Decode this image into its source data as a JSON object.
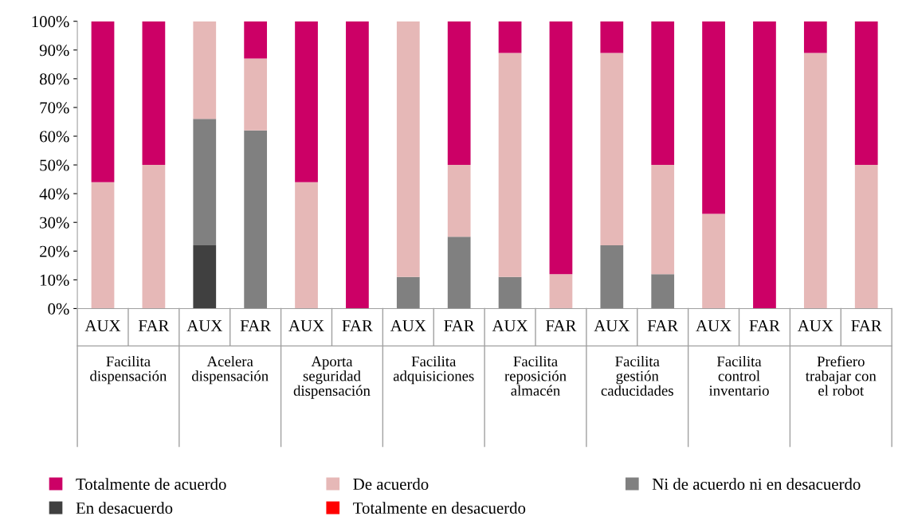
{
  "chart_data": {
    "type": "bar",
    "stacked": true,
    "categories": [
      "AUX",
      "FAR",
      "AUX",
      "FAR",
      "AUX",
      "FAR",
      "AUX",
      "FAR",
      "AUX",
      "FAR",
      "AUX",
      "FAR",
      "AUX",
      "FAR",
      "AUX",
      "FAR"
    ],
    "series": [
      {
        "name": "Totalmente en desacuerdo",
        "color": "#ff0000",
        "values": [
          0,
          0,
          0,
          0,
          0,
          0,
          0,
          0,
          0,
          0,
          0,
          0,
          0,
          0,
          0,
          0
        ]
      },
      {
        "name": "En desacuerdo",
        "color": "#404040",
        "values": [
          0,
          0,
          22,
          0,
          0,
          0,
          0,
          0,
          0,
          0,
          0,
          0,
          0,
          0,
          0,
          0
        ]
      },
      {
        "name": "Ni de acuerdo ni en desacuerdo",
        "color": "#808080",
        "values": [
          0,
          0,
          44,
          62,
          0,
          0,
          11,
          25,
          11,
          0,
          22,
          12,
          0,
          0,
          0,
          0
        ]
      },
      {
        "name": "De acuerdo",
        "color": "#e6b8b7",
        "values": [
          44,
          50,
          34,
          25,
          44,
          0,
          89,
          25,
          78,
          12,
          67,
          38,
          33,
          0,
          89,
          50
        ]
      },
      {
        "name": "Totalmente de acuerdo",
        "color": "#cc0066",
        "values": [
          56,
          50,
          0,
          13,
          56,
          100,
          0,
          50,
          11,
          88,
          11,
          50,
          67,
          100,
          11,
          50
        ]
      }
    ],
    "ylim": [
      0,
      100
    ],
    "yticks": [
      {
        "value": 0,
        "label": "0%"
      },
      {
        "value": 10,
        "label": "10%"
      },
      {
        "value": 20,
        "label": "20%"
      },
      {
        "value": 30,
        "label": "30%"
      },
      {
        "value": 40,
        "label": "40%"
      },
      {
        "value": 50,
        "label": "50%"
      },
      {
        "value": 60,
        "label": "60%"
      },
      {
        "value": 70,
        "label": "70%"
      },
      {
        "value": 80,
        "label": "80%"
      },
      {
        "value": 90,
        "label": "90%"
      },
      {
        "value": 100,
        "label": "100%"
      }
    ],
    "annotations": [
      "Facilita\ndispensación",
      "Acelera\ndispensación",
      "Aporta\nseguridad\ndispensación",
      "Facilita\nadquisiciones",
      "Facilita\nreposición\nalmacén",
      "Facilita\ngestión\ncaducidades",
      "Facilita\ncontrol\ninventario",
      "Prefiero\ntrabajar con\nel robot"
    ],
    "grid": false,
    "legend": "bottom"
  }
}
